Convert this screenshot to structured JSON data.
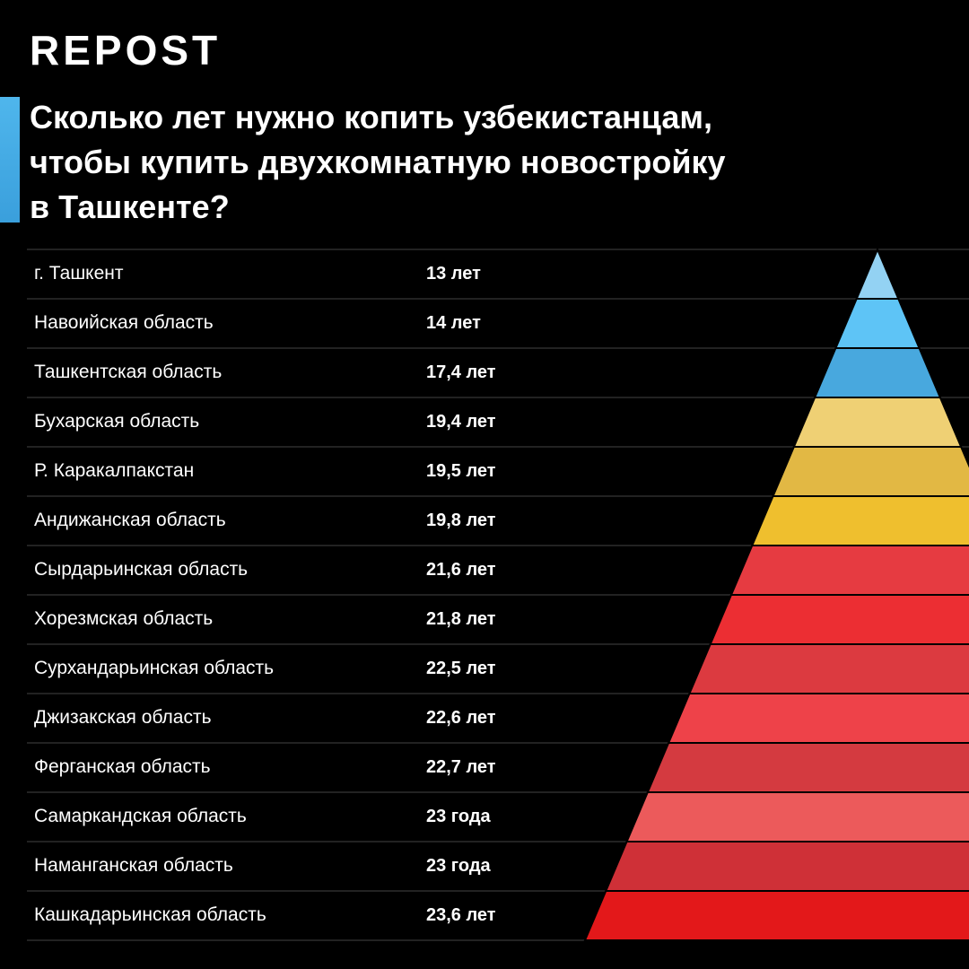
{
  "logo": "REPOST",
  "title": [
    "Сколько лет нужно копить узбекистанцам,",
    "чтобы купить двухкомнатную новостройку",
    "в Ташкенте?"
  ],
  "table": {
    "rows": [
      [
        "г. Ташкент",
        "13 лет"
      ],
      [
        "Навоийская область",
        "14 лет"
      ],
      [
        "Ташкентская область",
        "17,4 лет"
      ],
      [
        "Бухарская область",
        "19,4 лет"
      ],
      [
        "Р. Каракалпакстан",
        "19,5 лет"
      ],
      [
        "Андижанская область",
        "19,8 лет"
      ],
      [
        "Сырдарьинская область",
        "21,6 лет"
      ],
      [
        "Хорезмская область",
        "21,8 лет"
      ],
      [
        "Сурхандарьинская область",
        "22,5 лет"
      ],
      [
        "Джизакская область",
        "22,6 лет"
      ],
      [
        "Ферганская область",
        "22,7 лет"
      ],
      [
        "Самаркандская область",
        "23 года"
      ],
      [
        "Наманганская область",
        "23 года"
      ],
      [
        "Кашкадарьинская область",
        "23,6 лет"
      ]
    ]
  }
}
